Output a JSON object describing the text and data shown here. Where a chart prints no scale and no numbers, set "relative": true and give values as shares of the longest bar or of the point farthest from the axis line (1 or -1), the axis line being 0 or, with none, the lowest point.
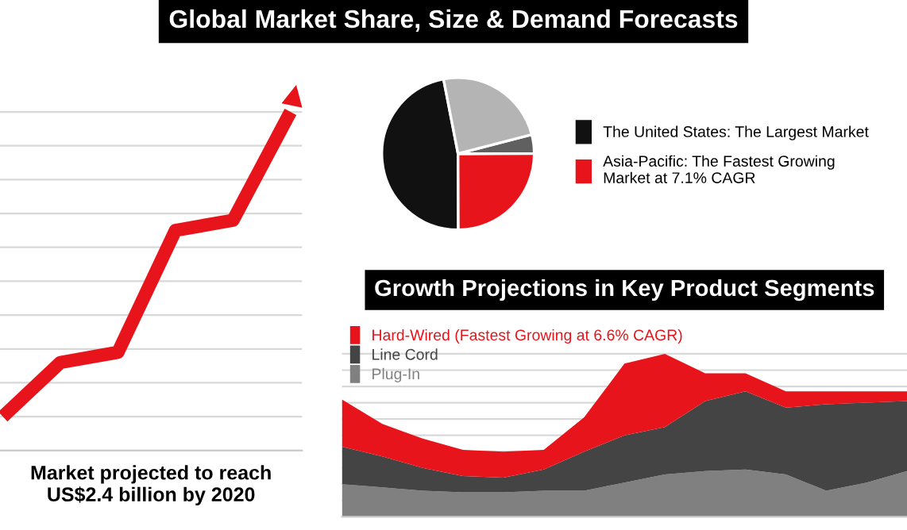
{
  "chart_data": [
    {
      "type": "line",
      "title": "Global Market Share, Size & Demand Forecasts",
      "relative": true,
      "grid": "y",
      "categories": [
        null,
        null,
        null,
        null,
        null,
        null
      ],
      "series": [
        {
          "color": "#e8141b",
          "values": [
            0.1,
            0.26,
            0.29,
            0.65,
            0.68,
            1
          ]
        }
      ],
      "annotations": [
        "Market projected to reach\nUS$2.4 billion by 2020"
      ]
    },
    {
      "type": "pie",
      "legend": "right",
      "categories": [
        "The United States: The Largest Market",
        "Asia-Pacific: The Fastest Growing Market at 7.1% CAGR",
        null,
        null
      ],
      "values": [
        47,
        25,
        4,
        24
      ],
      "colors": [
        "#111111",
        "#e8141b",
        "#606060",
        "#b4b4b4"
      ]
    },
    {
      "type": "area",
      "stacked": true,
      "relative": true,
      "grid": "y",
      "legend": "top left",
      "title": "Growth Projections in Key Product Segments",
      "categories": [
        null,
        null,
        null,
        null,
        null,
        null,
        null,
        null,
        null,
        null,
        null,
        null,
        null,
        null,
        null
      ],
      "series": [
        {
          "name": "Plug-In",
          "color": "#808080",
          "values": [
            0.2,
            0.18,
            0.16,
            0.15,
            0.15,
            0.16,
            0.16,
            0.21,
            0.26,
            0.28,
            0.29,
            0.26,
            0.16,
            0.21,
            0.28
          ]
        },
        {
          "name": "Line Cord",
          "color": "#444444",
          "values": [
            0.23,
            0.19,
            0.14,
            0.1,
            0.09,
            0.13,
            0.24,
            0.29,
            0.29,
            0.43,
            0.48,
            0.41,
            0.53,
            0.49,
            0.43
          ]
        },
        {
          "name": "Hard-Wired (Fastest Growing at 6.6% CAGR)",
          "color": "#e8141b",
          "values": [
            0.29,
            0.2,
            0.18,
            0.16,
            0.16,
            0.12,
            0.21,
            0.44,
            0.45,
            0.17,
            0.11,
            0.1,
            0.08,
            0.07,
            0.06
          ]
        }
      ]
    }
  ]
}
